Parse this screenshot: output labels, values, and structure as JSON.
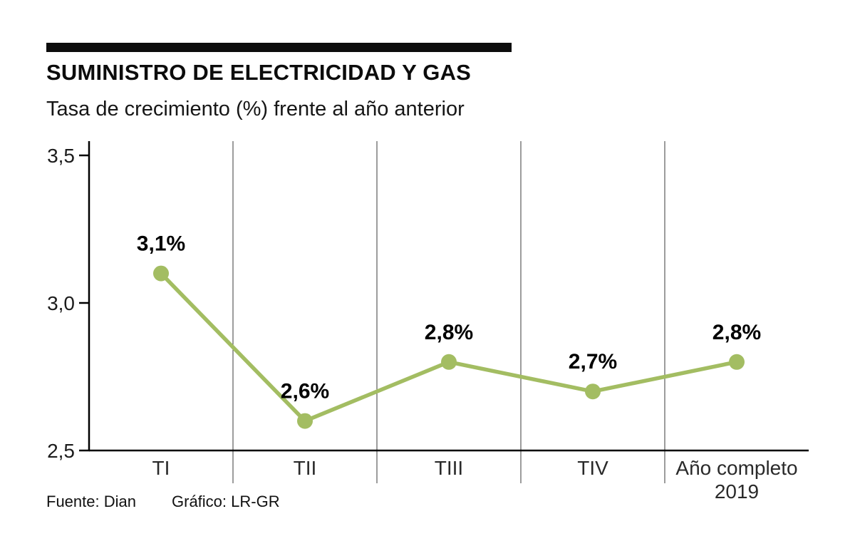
{
  "footer": {
    "source": "Fuente: Dian",
    "credit": "Gráfico: LR-GR"
  },
  "chart_data": {
    "type": "line",
    "title": "SUMINISTRO DE ELECTRICIDAD Y GAS",
    "subtitle": "Tasa de crecimiento (%) frente al año anterior",
    "categories": [
      "TI",
      "TII",
      "TIII",
      "TIV",
      "Año completo\n2019"
    ],
    "values": [
      3.1,
      2.6,
      2.8,
      2.7,
      2.8
    ],
    "point_labels": [
      "3,1%",
      "2,6%",
      "2,8%",
      "2,7%",
      "2,8%"
    ],
    "ylim": [
      2.5,
      3.5
    ],
    "yticks": [
      3.5,
      3.0,
      2.5
    ],
    "ytick_labels": [
      "3,5",
      "3,0",
      "2,5"
    ],
    "xlabel": "",
    "ylabel": "",
    "legend": "none",
    "grid": "vertical-category-separators",
    "line_color": "#a3bd62",
    "marker_color": "#a3bd62",
    "axis_color": "#000000",
    "grid_color": "#3a3a3a",
    "label_color": "#000000"
  }
}
